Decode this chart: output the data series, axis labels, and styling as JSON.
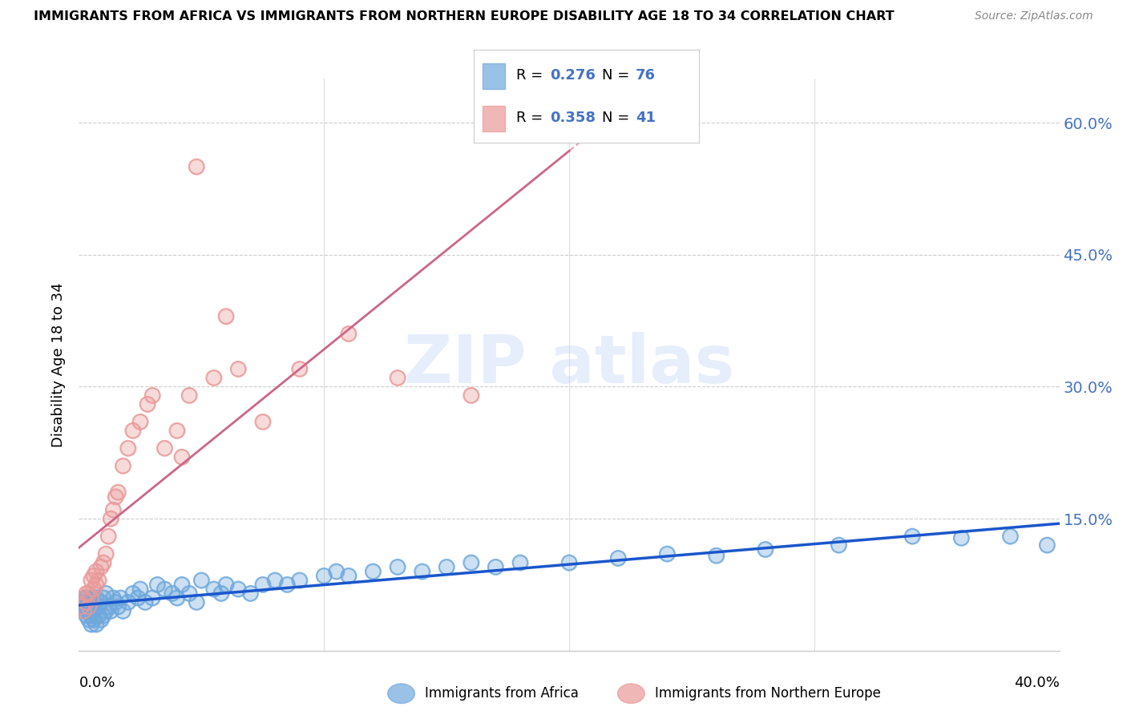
{
  "title": "IMMIGRANTS FROM AFRICA VS IMMIGRANTS FROM NORTHERN EUROPE DISABILITY AGE 18 TO 34 CORRELATION CHART",
  "source": "Source: ZipAtlas.com",
  "ylabel": "Disability Age 18 to 34",
  "yticks": [
    0.0,
    0.15,
    0.3,
    0.45,
    0.6
  ],
  "ytick_labels": [
    "",
    "15.0%",
    "30.0%",
    "45.0%",
    "60.0%"
  ],
  "xlim": [
    0.0,
    0.4
  ],
  "ylim": [
    0.0,
    0.65
  ],
  "legend_r1": "0.276",
  "legend_n1": "76",
  "legend_r2": "0.358",
  "legend_n2": "41",
  "series1_label": "Immigrants from Africa",
  "series2_label": "Immigrants from Northern Europe",
  "series1_color": "#6fa8dc",
  "series2_color": "#ea9999",
  "trendline1_color": "#1a56cc",
  "trendline2_color": "#cc6688",
  "africa_x": [
    0.001,
    0.002,
    0.002,
    0.003,
    0.003,
    0.003,
    0.004,
    0.004,
    0.004,
    0.005,
    0.005,
    0.005,
    0.005,
    0.006,
    0.006,
    0.006,
    0.007,
    0.007,
    0.008,
    0.008,
    0.009,
    0.009,
    0.01,
    0.01,
    0.011,
    0.011,
    0.012,
    0.013,
    0.014,
    0.015,
    0.016,
    0.017,
    0.018,
    0.02,
    0.022,
    0.024,
    0.025,
    0.027,
    0.03,
    0.032,
    0.035,
    0.038,
    0.04,
    0.042,
    0.045,
    0.048,
    0.05,
    0.055,
    0.058,
    0.06,
    0.065,
    0.07,
    0.075,
    0.08,
    0.085,
    0.09,
    0.1,
    0.105,
    0.11,
    0.12,
    0.13,
    0.14,
    0.15,
    0.16,
    0.17,
    0.18,
    0.2,
    0.22,
    0.24,
    0.26,
    0.28,
    0.31,
    0.34,
    0.36,
    0.38,
    0.395
  ],
  "africa_y": [
    0.05,
    0.045,
    0.055,
    0.04,
    0.05,
    0.06,
    0.035,
    0.045,
    0.055,
    0.03,
    0.04,
    0.05,
    0.06,
    0.035,
    0.045,
    0.055,
    0.03,
    0.06,
    0.04,
    0.05,
    0.035,
    0.055,
    0.04,
    0.06,
    0.045,
    0.065,
    0.05,
    0.045,
    0.06,
    0.055,
    0.05,
    0.06,
    0.045,
    0.055,
    0.065,
    0.06,
    0.07,
    0.055,
    0.06,
    0.075,
    0.07,
    0.065,
    0.06,
    0.075,
    0.065,
    0.055,
    0.08,
    0.07,
    0.065,
    0.075,
    0.07,
    0.065,
    0.075,
    0.08,
    0.075,
    0.08,
    0.085,
    0.09,
    0.085,
    0.09,
    0.095,
    0.09,
    0.095,
    0.1,
    0.095,
    0.1,
    0.1,
    0.105,
    0.11,
    0.108,
    0.115,
    0.12,
    0.13,
    0.128,
    0.13,
    0.12
  ],
  "northern_x": [
    0.001,
    0.002,
    0.002,
    0.003,
    0.003,
    0.004,
    0.004,
    0.005,
    0.005,
    0.006,
    0.006,
    0.007,
    0.007,
    0.008,
    0.009,
    0.01,
    0.011,
    0.012,
    0.013,
    0.014,
    0.015,
    0.016,
    0.018,
    0.02,
    0.022,
    0.025,
    0.028,
    0.03,
    0.035,
    0.04,
    0.042,
    0.045,
    0.048,
    0.055,
    0.06,
    0.065,
    0.075,
    0.09,
    0.11,
    0.13,
    0.16
  ],
  "northern_y": [
    0.05,
    0.045,
    0.06,
    0.055,
    0.065,
    0.05,
    0.065,
    0.06,
    0.08,
    0.07,
    0.085,
    0.075,
    0.09,
    0.08,
    0.095,
    0.1,
    0.11,
    0.13,
    0.15,
    0.16,
    0.175,
    0.18,
    0.21,
    0.23,
    0.25,
    0.26,
    0.28,
    0.29,
    0.23,
    0.25,
    0.22,
    0.29,
    0.55,
    0.31,
    0.38,
    0.32,
    0.26,
    0.32,
    0.36,
    0.31,
    0.29
  ]
}
